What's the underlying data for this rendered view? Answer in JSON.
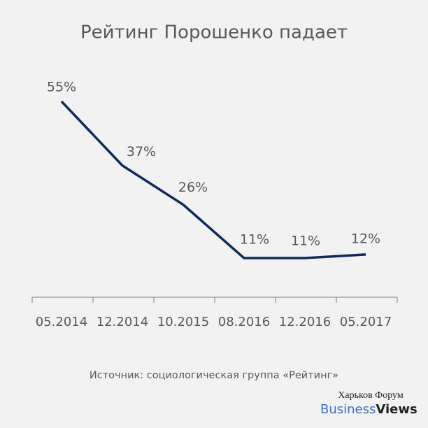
{
  "chart_data": {
    "type": "line",
    "title": "Рейтинг Порошенко падает",
    "categories": [
      "05.2014",
      "12.2014",
      "10.2015",
      "08.2016",
      "12.2016",
      "05.2017"
    ],
    "values": [
      55,
      37,
      26,
      11,
      11,
      12
    ],
    "value_labels": [
      "55%",
      "37%",
      "26%",
      "11%",
      "11%",
      "12%"
    ],
    "color": "#0f2a5c",
    "source": "Источник: социологическая группа «Рейтинг»"
  },
  "watermark": {
    "line1": "Харьков Форум",
    "brand": [
      "Business",
      "Views"
    ]
  }
}
